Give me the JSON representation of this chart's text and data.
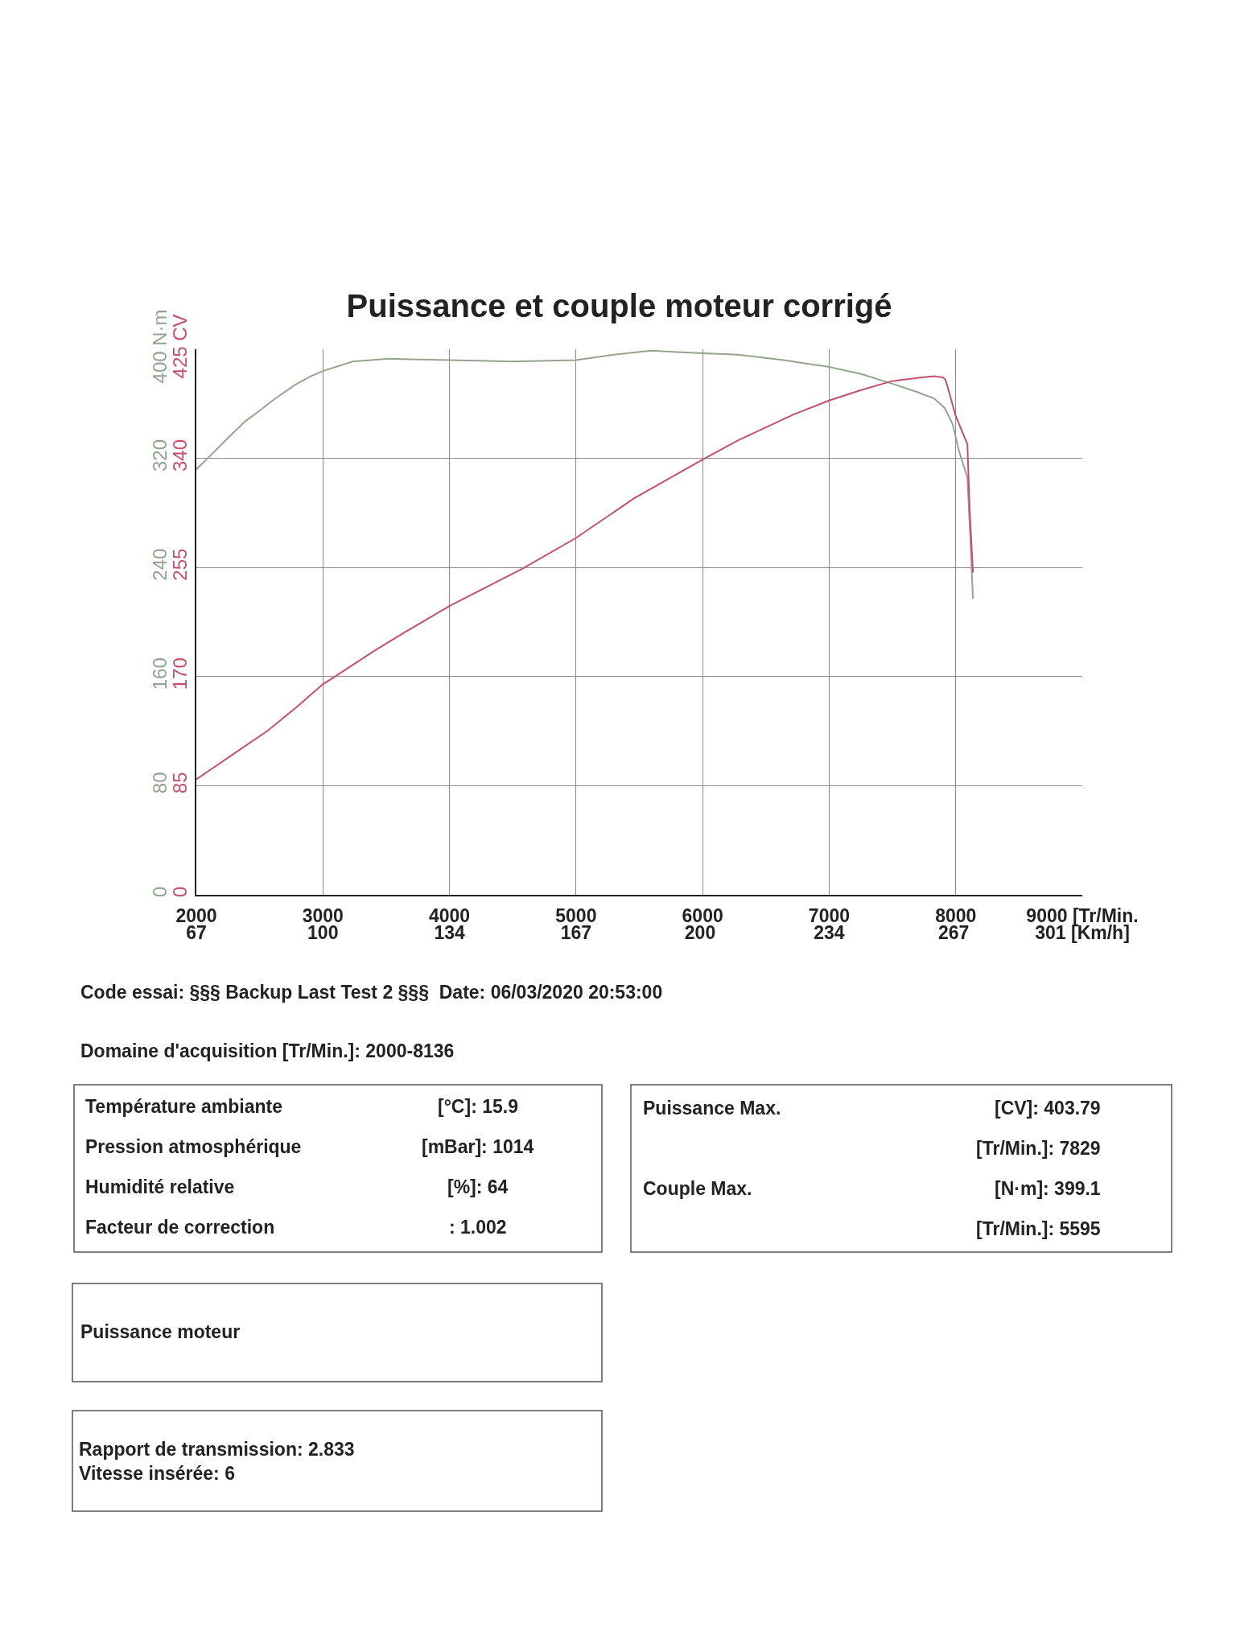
{
  "chart_data": {
    "type": "line",
    "title": "Puissance et couple moteur corrigé",
    "xlim": [
      2000,
      9000
    ],
    "xticks": [
      2000,
      3000,
      4000,
      5000,
      6000,
      7000,
      8000,
      {
        "value": 9000,
        "label": "9000 [Tr/Min."
      }
    ],
    "x2lim": [
      66.89,
      301
    ],
    "x2ticks": [
      {
        "value": 66.89,
        "label": "67"
      },
      {
        "value": 100.33,
        "label": "100"
      },
      {
        "value": 133.78,
        "label": "134"
      },
      {
        "value": 167.22,
        "label": "167"
      },
      200,
      {
        "value": 234.11,
        "label": "234"
      },
      267,
      {
        "value": 301,
        "label": "301 [Km/h]"
      }
    ],
    "ylim": [
      0,
      400
    ],
    "yticks": [
      0,
      80,
      160,
      240,
      320,
      {
        "value": 400,
        "label": "400 N·m"
      }
    ],
    "y2lim": [
      0,
      425
    ],
    "y2ticks": [
      0,
      85,
      170,
      255,
      340,
      {
        "value": 425,
        "label": "425 CV"
      }
    ],
    "grid": true,
    "series": [
      {
        "color": "#93a58f",
        "x": [
          2000,
          2100,
          2250,
          2384,
          2500,
          2611,
          2781,
          2900,
          3000,
          3236,
          3520,
          4000,
          4500,
          5000,
          5300,
          5595,
          5800,
          6000,
          6278,
          6642,
          7000,
          7247,
          7489,
          7683,
          7828,
          7913,
          7976,
          8024,
          8092,
          8115,
          8136
        ],
        "values": [
          312,
          321,
          335,
          347,
          355,
          363,
          374,
          380,
          384,
          391,
          393,
          392,
          391,
          392,
          396,
          399,
          398,
          397,
          396,
          392,
          387,
          382,
          375,
          369,
          364,
          357,
          345,
          326,
          306,
          262,
          217
        ]
      },
      {
        "color": "#c4506b",
        "axis": "y2",
        "x": [
          2000,
          2283,
          2566,
          2790,
          3000,
          3126,
          3405,
          3655,
          4000,
          4574,
          5000,
          5460,
          6000,
          6278,
          6714,
          7000,
          7247,
          7489,
          7562,
          7646,
          7731,
          7829,
          7901,
          7920,
          8000,
          8092,
          8110,
          8136
        ],
        "values": [
          90,
          109,
          128,
          146,
          164,
          172,
          190,
          205,
          225,
          254,
          278,
          309,
          339,
          354,
          374,
          385,
          393,
          400,
          401,
          402,
          403,
          404,
          403,
          401,
          373,
          351,
          300,
          251
        ]
      }
    ],
    "annotations": [
      "Code essai: §§§ Backup Last Test 2 §§§  Date: 06/03/2020 20:53:00",
      "Domaine d'acquisition [Tr/Min.]: 2000-8136",
      "Température ambiante",
      "[°C]: 15.9",
      "Pression atmosphérique",
      "[mBar]: 1014",
      "Humidité relative",
      "[%]: 64",
      "Facteur de correction",
      ": 1.002",
      "Puissance Max.",
      "[CV]: 403.79",
      "[Tr/Min.]: 7829",
      "Couple Max.",
      "[N·m]: 399.1",
      "[Tr/Min.]: 5595",
      "Puissance moteur",
      "Rapport de transmission: 2.833\nVitesse insérée: 6"
    ]
  }
}
